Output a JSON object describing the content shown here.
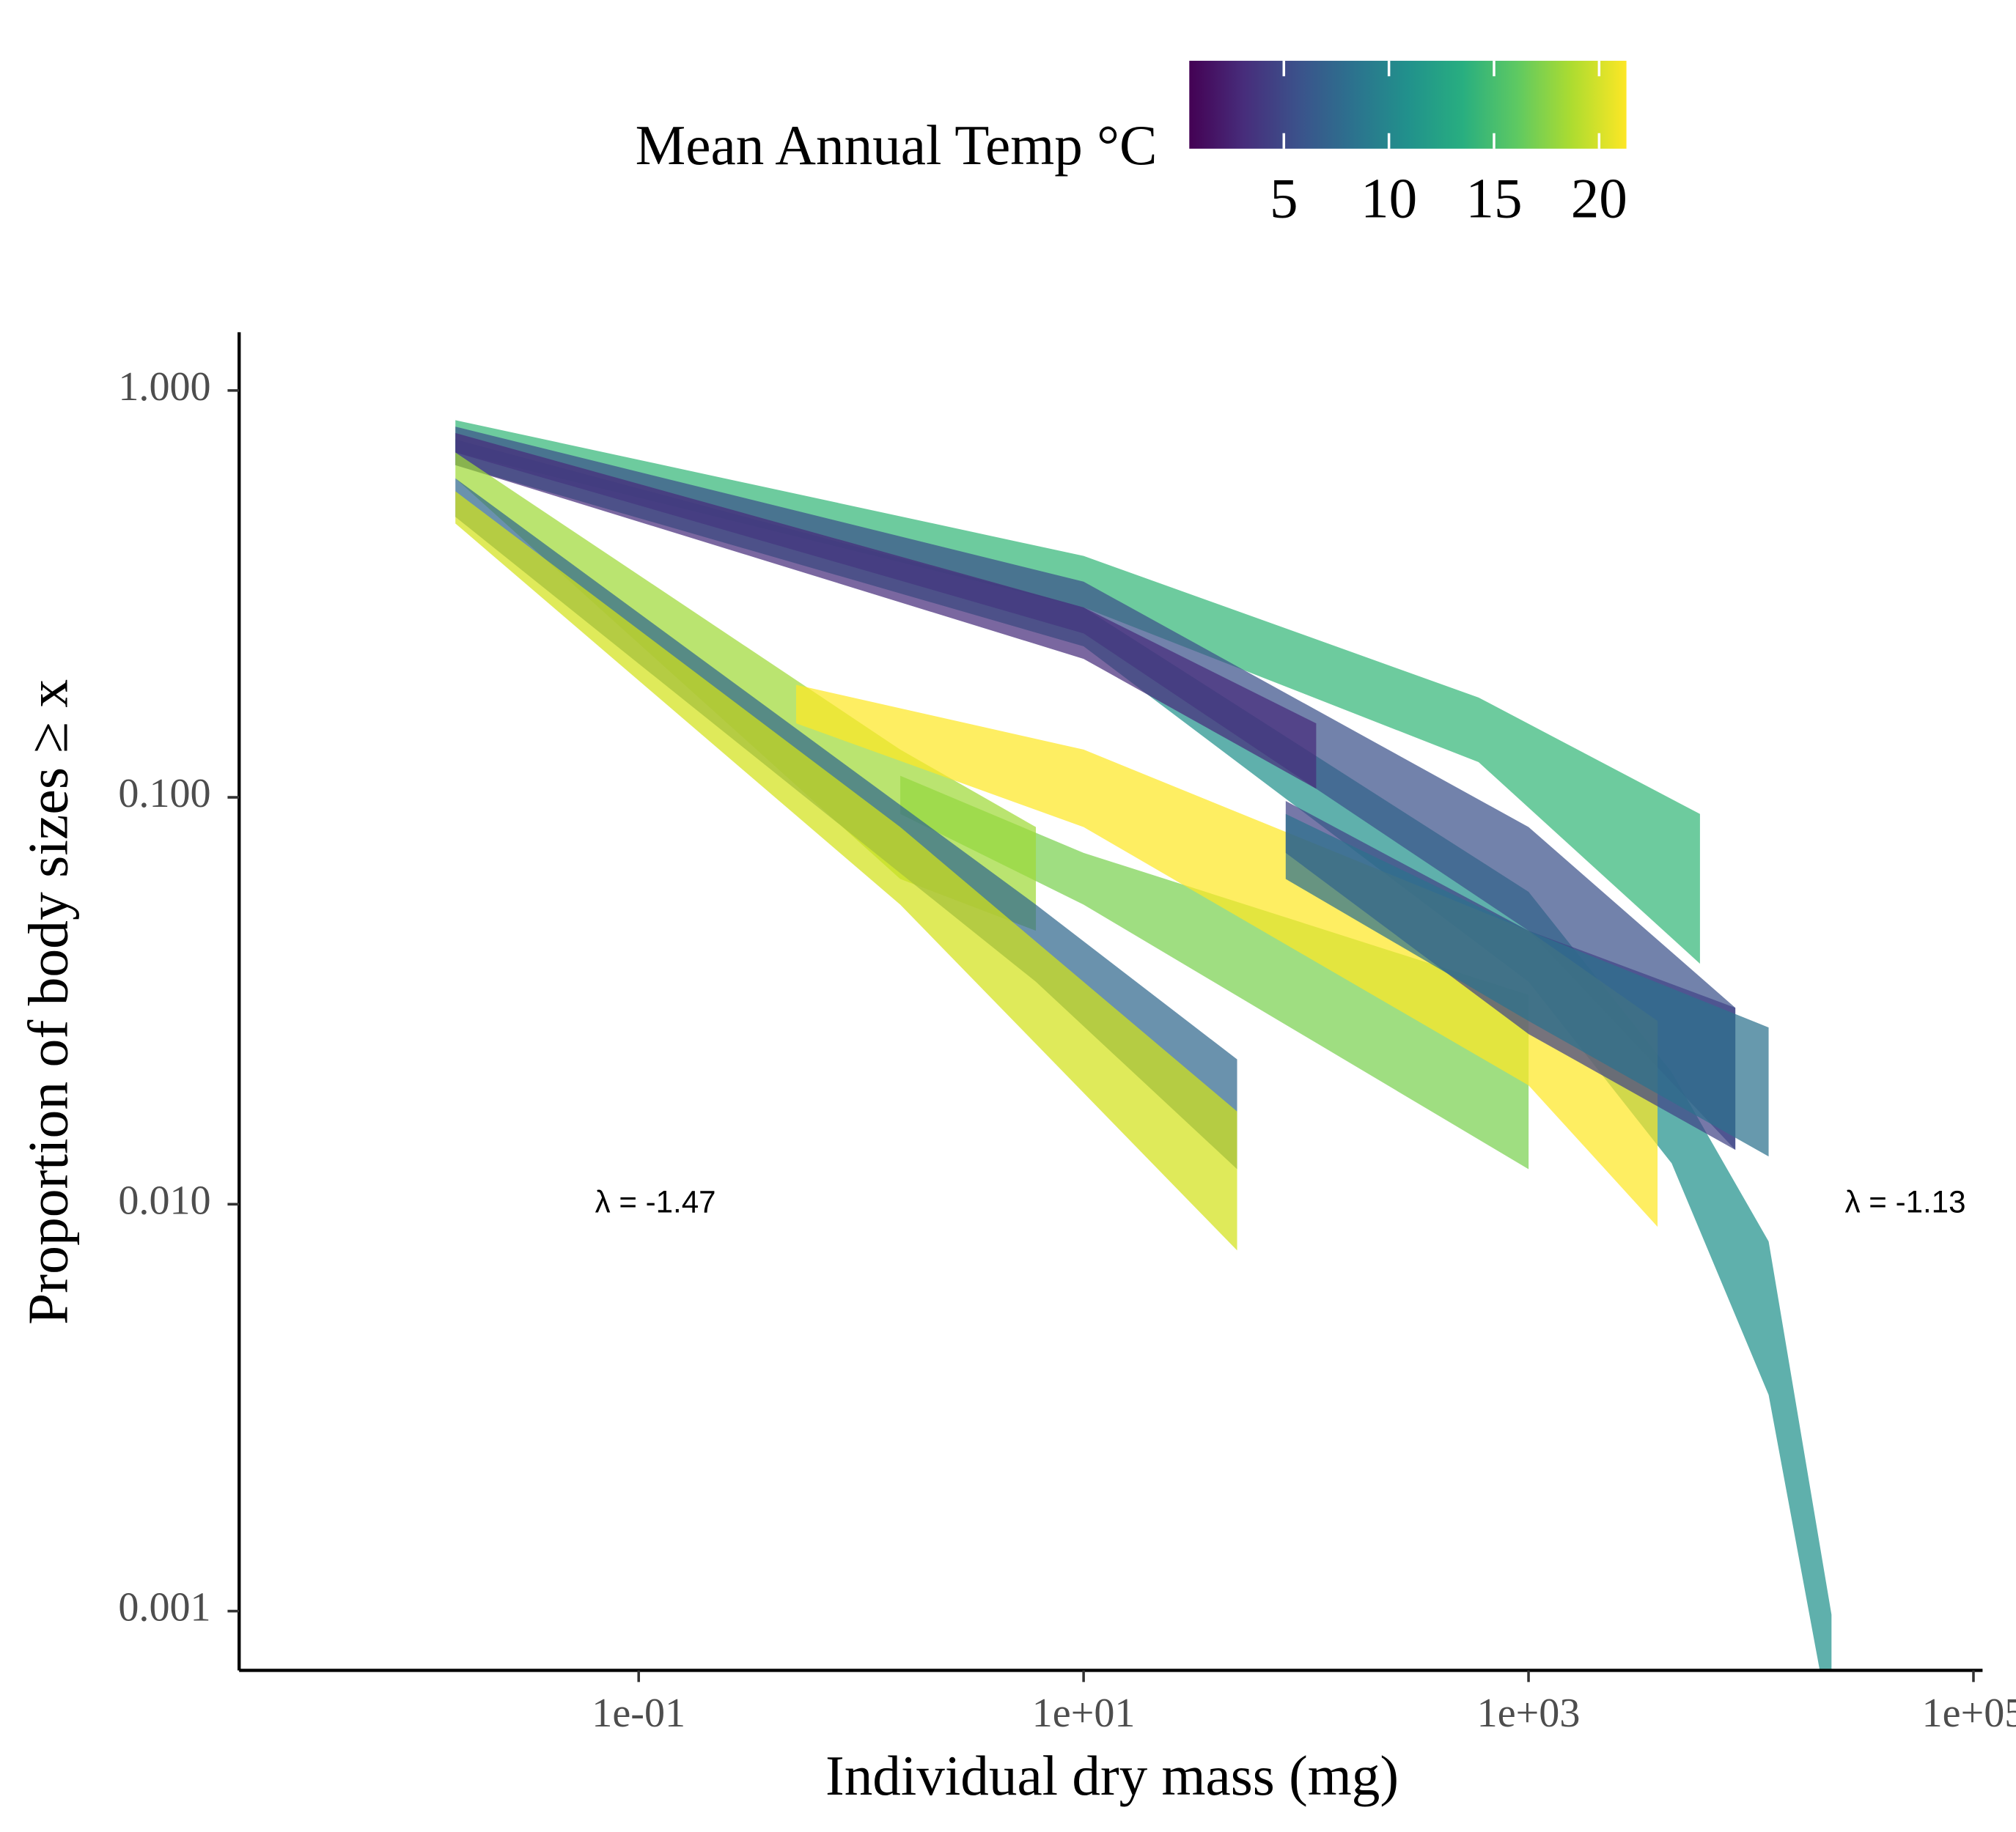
{
  "chart_data": {
    "type": "band",
    "x_label": "Individual dry mass (mg)",
    "y_label": "Proportion of body sizes ≥ x",
    "xscale": "log",
    "yscale": "log",
    "xlim": [
      0.0016,
      107000
    ],
    "ylim": [
      0.000715,
      1.39
    ],
    "xticks": [
      {
        "value": 0.1,
        "label": "1e-01"
      },
      {
        "value": 10,
        "label": "1e+01"
      },
      {
        "value": 1000,
        "label": "1e+03"
      },
      {
        "value": 100000,
        "label": "1e+05"
      }
    ],
    "yticks": [
      {
        "value": 1,
        "label": "1.000"
      },
      {
        "value": 0.1,
        "label": "0.100"
      },
      {
        "value": 0.01,
        "label": "0.010"
      },
      {
        "value": 0.001,
        "label": "0.001"
      }
    ],
    "colorbar": {
      "title": "Mean Annual Temp °C",
      "limits": [
        0.5,
        21.3
      ],
      "ticks": [
        5,
        10,
        15,
        20
      ],
      "colors": [
        "#440154",
        "#472d7b",
        "#3b528b",
        "#2c728e",
        "#21918c",
        "#28ae80",
        "#5ec962",
        "#addc30",
        "#fde725"
      ]
    },
    "annotations": [
      {
        "text": "λ = -1.47",
        "x": 0.119,
        "y": 0.01
      },
      {
        "text": "λ = -1.13",
        "x": 49400,
        "y": 0.01
      }
    ],
    "series": [
      {
        "color": "#35b779",
        "x": [
          0.015,
          10,
          596,
          5900
        ],
        "upper": [
          0.845,
          0.392,
          0.176,
          0.091
        ],
        "lower": [
          0.704,
          0.293,
          0.122,
          0.039
        ]
      },
      {
        "color": "#21918c",
        "x": [
          0.015,
          10,
          1000,
          4400,
          12000,
          23000
        ],
        "upper": [
          0.758,
          0.293,
          0.0586,
          0.0211,
          0.0081,
          0.00098
        ],
        "lower": [
          0.655,
          0.235,
          0.0352,
          0.0126,
          0.0034,
          0.0005
        ]
      },
      {
        "color": "#3b528b",
        "x": [
          0.015,
          10,
          1000,
          8500
        ],
        "upper": [
          0.815,
          0.339,
          0.0845,
          0.0304
        ],
        "lower": [
          0.704,
          0.253,
          0.047,
          0.0136
        ]
      },
      {
        "color": "#472d7b",
        "x": [
          0.015,
          10,
          111
        ],
        "upper": [
          0.786,
          0.293,
          0.152
        ],
        "lower": [
          0.655,
          0.219,
          0.105
        ]
      },
      {
        "color": "#7ad151",
        "x": [
          1.5,
          10,
          1000
        ],
        "upper": [
          0.113,
          0.073,
          0.0327
        ],
        "lower": [
          0.091,
          0.0545,
          0.0122
        ]
      },
      {
        "color": "#a0da39",
        "x": [
          0.015,
          1.5,
          6.1
        ],
        "upper": [
          0.704,
          0.131,
          0.0845
        ],
        "lower": [
          0.608,
          0.063,
          0.047
        ]
      },
      {
        "color": "#31688e",
        "x": [
          0.015,
          6.1,
          49
        ],
        "upper": [
          0.608,
          0.0545,
          0.0227
        ],
        "lower": [
          0.489,
          0.0352,
          0.0122
        ]
      },
      {
        "color": "#d2e21b",
        "x": [
          0.015,
          1.5,
          49
        ],
        "upper": [
          0.565,
          0.0845,
          0.0169
        ],
        "lower": [
          0.471,
          0.0545,
          0.0077
        ]
      },
      {
        "color": "#fde725",
        "x": [
          0.51,
          10,
          1000,
          3800
        ],
        "upper": [
          0.189,
          0.131,
          0.047,
          0.0282
        ],
        "lower": [
          0.152,
          0.0845,
          0.0196,
          0.0088
        ]
      },
      {
        "color": "#414487",
        "x": [
          81,
          1000,
          8500
        ],
        "upper": [
          0.098,
          0.047,
          0.0304
        ],
        "lower": [
          0.073,
          0.0262,
          0.0136
        ]
      },
      {
        "color": "#2c728e",
        "x": [
          81,
          1000,
          12000
        ],
        "upper": [
          0.091,
          0.047,
          0.0272
        ],
        "lower": [
          0.063,
          0.0282,
          0.0131
        ]
      }
    ]
  }
}
